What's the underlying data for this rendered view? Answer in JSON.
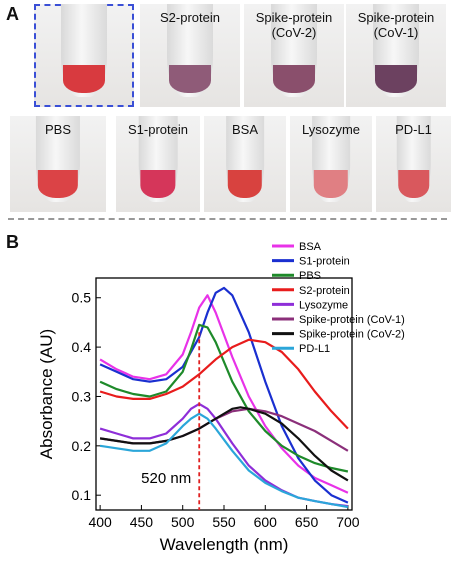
{
  "panel_a": {
    "letter": "A",
    "tubes_row1": [
      {
        "label": "",
        "color": "#d83a3f",
        "selected": true
      },
      {
        "label": "S2-protein",
        "color": "#8f5b78",
        "selected": false
      },
      {
        "label": "Spike-protein\n(CoV-2)",
        "color": "#8a4f6c",
        "selected": false
      },
      {
        "label": "Spike-protein\n(CoV-1)",
        "color": "#6c4160",
        "selected": false
      }
    ],
    "tubes_row2": [
      {
        "label": "PBS",
        "color": "#db4346"
      },
      {
        "label": "S1-protein",
        "color": "#d5365a"
      },
      {
        "label": "BSA",
        "color": "#d8423f"
      },
      {
        "label": "Lysozyme",
        "color": "#e07f83"
      },
      {
        "label": "PD-L1",
        "color": "#d9585d"
      }
    ]
  },
  "panel_b": {
    "letter": "B"
  },
  "chart_data": {
    "type": "line",
    "xlabel": "Wavelength (nm)",
    "ylabel": "Absorbance (AU)",
    "xlim": [
      395,
      705
    ],
    "ylim": [
      0.07,
      0.54
    ],
    "x_ticks": [
      400,
      450,
      500,
      550,
      600,
      650,
      700
    ],
    "y_ticks": [
      0.1,
      0.2,
      0.3,
      0.4,
      0.5
    ],
    "annotation": {
      "text": "520 nm",
      "x": 520
    },
    "legend_position": "top-right",
    "series": [
      {
        "name": "BSA",
        "color": "#e832e8",
        "x": [
          400,
          420,
          440,
          460,
          480,
          500,
          510,
          520,
          530,
          540,
          560,
          580,
          600,
          620,
          640,
          660,
          680,
          700
        ],
        "y": [
          0.375,
          0.355,
          0.34,
          0.335,
          0.345,
          0.385,
          0.43,
          0.48,
          0.505,
          0.47,
          0.38,
          0.3,
          0.24,
          0.195,
          0.16,
          0.135,
          0.12,
          0.105
        ]
      },
      {
        "name": "S1-protein",
        "color": "#1a2fd0",
        "x": [
          400,
          420,
          440,
          460,
          480,
          500,
          520,
          530,
          540,
          550,
          560,
          580,
          600,
          620,
          640,
          660,
          680,
          700
        ],
        "y": [
          0.365,
          0.35,
          0.335,
          0.33,
          0.335,
          0.36,
          0.42,
          0.47,
          0.51,
          0.52,
          0.505,
          0.43,
          0.33,
          0.24,
          0.175,
          0.13,
          0.1,
          0.085
        ]
      },
      {
        "name": "PBS",
        "color": "#1e8a2a",
        "x": [
          400,
          420,
          440,
          460,
          480,
          500,
          510,
          520,
          530,
          540,
          560,
          580,
          600,
          620,
          640,
          660,
          680,
          700
        ],
        "y": [
          0.33,
          0.315,
          0.305,
          0.3,
          0.31,
          0.35,
          0.395,
          0.445,
          0.44,
          0.41,
          0.33,
          0.27,
          0.23,
          0.2,
          0.18,
          0.165,
          0.155,
          0.148
        ]
      },
      {
        "name": "S2-protein",
        "color": "#e81c1c",
        "x": [
          400,
          420,
          440,
          460,
          480,
          500,
          520,
          540,
          560,
          580,
          600,
          620,
          640,
          660,
          680,
          700
        ],
        "y": [
          0.31,
          0.3,
          0.295,
          0.295,
          0.305,
          0.32,
          0.345,
          0.375,
          0.4,
          0.415,
          0.41,
          0.39,
          0.355,
          0.31,
          0.27,
          0.235
        ]
      },
      {
        "name": "Lysozyme",
        "color": "#8e2ed8",
        "x": [
          400,
          420,
          440,
          460,
          480,
          500,
          510,
          520,
          530,
          540,
          560,
          580,
          600,
          620,
          640,
          660,
          680,
          700
        ],
        "y": [
          0.235,
          0.225,
          0.215,
          0.215,
          0.225,
          0.255,
          0.275,
          0.285,
          0.275,
          0.255,
          0.205,
          0.16,
          0.13,
          0.11,
          0.095,
          0.088,
          0.082,
          0.078
        ]
      },
      {
        "name": "Spike-protein (CoV-1)",
        "color": "#8b2f7a",
        "x": [
          400,
          420,
          440,
          460,
          480,
          500,
          520,
          540,
          560,
          580,
          600,
          620,
          640,
          660,
          680,
          700
        ],
        "y": [
          0.215,
          0.21,
          0.205,
          0.205,
          0.21,
          0.22,
          0.235,
          0.255,
          0.27,
          0.275,
          0.27,
          0.26,
          0.245,
          0.23,
          0.21,
          0.19
        ]
      },
      {
        "name": "Spike-protein (CoV-2)",
        "color": "#111111",
        "x": [
          400,
          420,
          440,
          460,
          480,
          500,
          520,
          540,
          560,
          570,
          580,
          600,
          620,
          640,
          660,
          680,
          700
        ],
        "y": [
          0.215,
          0.21,
          0.205,
          0.205,
          0.21,
          0.22,
          0.235,
          0.255,
          0.275,
          0.278,
          0.275,
          0.265,
          0.245,
          0.215,
          0.18,
          0.15,
          0.13
        ]
      },
      {
        "name": "PD-L1",
        "color": "#2ba6d9",
        "x": [
          400,
          420,
          440,
          460,
          480,
          500,
          510,
          520,
          530,
          540,
          560,
          580,
          600,
          620,
          640,
          660,
          680,
          700
        ],
        "y": [
          0.2,
          0.195,
          0.19,
          0.19,
          0.205,
          0.24,
          0.255,
          0.265,
          0.255,
          0.235,
          0.19,
          0.15,
          0.125,
          0.108,
          0.095,
          0.088,
          0.082,
          0.076
        ]
      }
    ]
  }
}
